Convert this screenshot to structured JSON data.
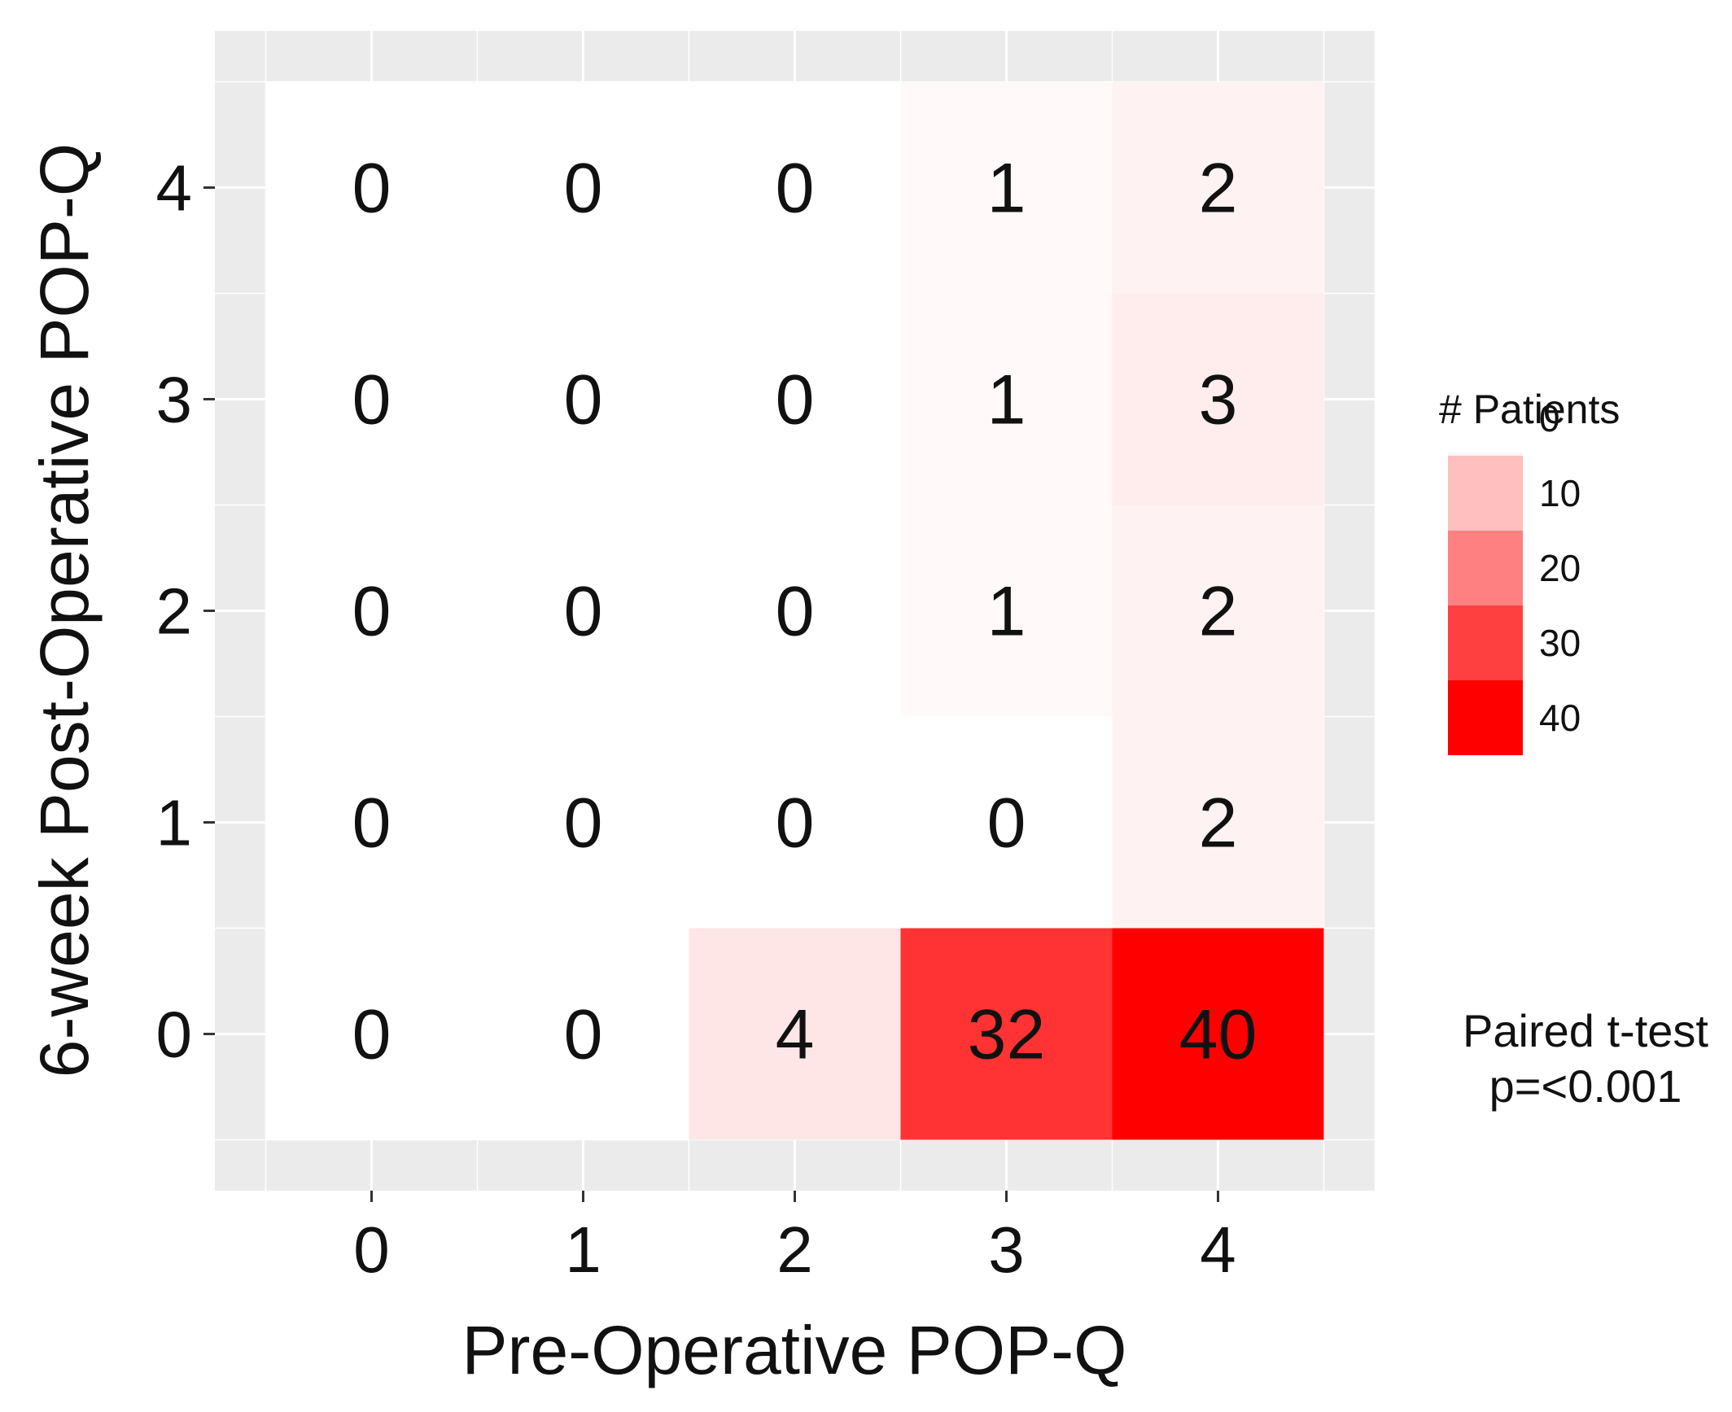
{
  "chart_data": {
    "type": "heatmap",
    "title": "",
    "xlabel": "Pre-Operative POP-Q",
    "ylabel": "6-week Post-Operative POP-Q",
    "x_categories": [
      "0",
      "1",
      "2",
      "3",
      "4"
    ],
    "y_categories": [
      "0",
      "1",
      "2",
      "3",
      "4"
    ],
    "values": [
      [
        0,
        0,
        4,
        32,
        40
      ],
      [
        0,
        0,
        0,
        0,
        2
      ],
      [
        0,
        0,
        0,
        1,
        2
      ],
      [
        0,
        0,
        0,
        1,
        3
      ],
      [
        0,
        0,
        0,
        1,
        2
      ]
    ],
    "color_scale": {
      "low": "#ffffff",
      "high": "#ff0000",
      "min": 0,
      "max": 40
    },
    "panel_background": "#ebebeb",
    "grid_color": "#ffffff",
    "legend": {
      "title": "# Patients",
      "placement": "right",
      "ticks": [
        0,
        10,
        20,
        30,
        40
      ],
      "labels": [
        "0",
        "10",
        "20",
        "30",
        "40"
      ]
    },
    "annotation": {
      "line1": "Paired t-test",
      "line2": "p=<0.001"
    }
  }
}
